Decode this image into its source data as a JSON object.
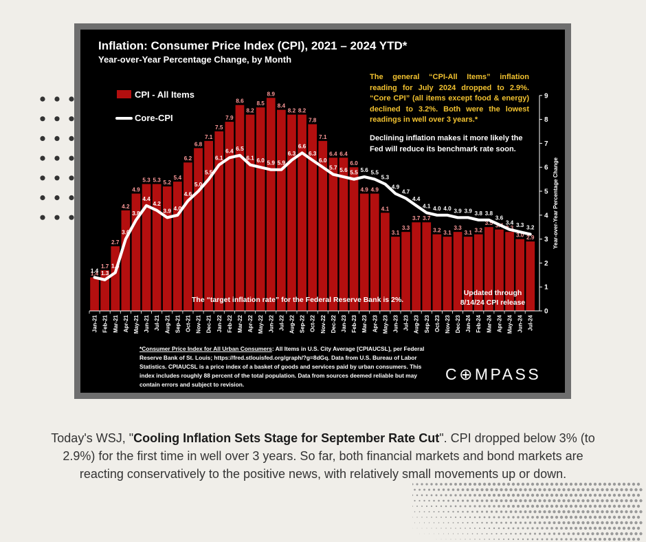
{
  "chart_data": {
    "type": "bar",
    "title": "Inflation: Consumer Price Index (CPI), 2021 – 2024 YTD*",
    "subtitle": "Year-over-Year Percentage Change, by Month",
    "ylabel": "Year-over-Year Percentage Change",
    "ylim": [
      0,
      9
    ],
    "yticks": [
      "0",
      "1",
      "2",
      "3",
      "4",
      "5",
      "6",
      "7",
      "8",
      "9"
    ],
    "grid": false,
    "legend_position": "top-left",
    "categories": [
      "Jan-21",
      "Feb-21",
      "Mar-21",
      "Apr-21",
      "May-21",
      "Jun-21",
      "Jul-21",
      "Aug-21",
      "Sep-21",
      "Oct-21",
      "Nov-21",
      "Dec-21",
      "Jan-22",
      "Feb-22",
      "Mar-22",
      "Apr-22",
      "May-22",
      "Jun-22",
      "Jul-22",
      "Aug-22",
      "Sep-22",
      "Oct-22",
      "Nov-22",
      "Dec-22",
      "Jan-23",
      "Feb-23",
      "Mar-23",
      "Apr-23",
      "May-23",
      "Jun-23",
      "Jul-23",
      "Aug-23",
      "Sep-23",
      "Oct-23",
      "Nov-23",
      "Dec-23",
      "Jan-24",
      "Feb-24",
      "Mar-24",
      "Apr-24",
      "May-24",
      "Jun-24",
      "Jul-24"
    ],
    "series": [
      {
        "name": "CPI - All Items",
        "kind": "bar",
        "values": [
          1.4,
          1.7,
          2.7,
          4.2,
          4.9,
          5.3,
          5.3,
          5.2,
          5.4,
          6.2,
          6.8,
          7.1,
          7.5,
          7.9,
          8.6,
          8.2,
          8.5,
          8.9,
          8.4,
          8.2,
          8.2,
          7.8,
          7.1,
          6.4,
          6.4,
          6.0,
          4.9,
          4.9,
          4.1,
          3.1,
          3.3,
          3.7,
          3.7,
          3.2,
          3.1,
          3.3,
          3.1,
          3.2,
          3.5,
          3.4,
          3.3,
          3.0,
          2.9
        ],
        "labels": [
          "1.4",
          "1.7",
          "2.7",
          "4.2",
          "4.9",
          "5.3",
          "5.3",
          "5.2",
          "5.4",
          "6.2",
          "6.8",
          "7.1",
          "7.5",
          "7.9",
          "8.6",
          "8.2",
          "8.5",
          "8.9",
          "8.4",
          "8.2",
          "8.2",
          "7.8",
          "7.1",
          "6.4",
          "6.4",
          "6.0",
          "4.9",
          "4.9",
          "4.1",
          "3.1",
          "3.3",
          "3.7",
          "3.7",
          "3.2",
          "3.1",
          "3.3",
          "3.1",
          "3.2",
          "3.5",
          "3.4",
          "3.3",
          "3.0",
          "2.9"
        ]
      },
      {
        "name": "Core-CPI",
        "kind": "line",
        "values": [
          1.4,
          1.3,
          1.6,
          3.0,
          3.8,
          4.4,
          4.2,
          3.9,
          4.0,
          4.6,
          5.0,
          5.5,
          6.1,
          6.4,
          6.5,
          6.1,
          6.0,
          5.9,
          5.9,
          6.3,
          6.6,
          6.3,
          6.0,
          5.7,
          5.6,
          5.5,
          5.6,
          5.5,
          5.3,
          4.9,
          4.7,
          4.4,
          4.1,
          4.0,
          4.0,
          3.9,
          3.9,
          3.8,
          3.8,
          3.6,
          3.4,
          3.3,
          3.2
        ],
        "labels": [
          "1.4",
          "1.3",
          "1.6",
          "3.0",
          "3.8",
          "4.4",
          "4.2",
          "3.9",
          "4.0",
          "4.6",
          "5.0",
          "5.5",
          "6.1",
          "6.4",
          "6.5",
          "6.1",
          "6.0",
          "5.9",
          "5.9",
          "6.3",
          "6.6",
          "6.3",
          "6.0",
          "5.7",
          "5.6",
          "5.5",
          "5.6",
          "5.5",
          "5.3",
          "4.9",
          "4.7",
          "4.4",
          "4.1",
          "4.0",
          "4.0",
          "3.9",
          "3.9",
          "3.8",
          "3.8",
          "3.6",
          "3.4",
          "3.3",
          "3.2"
        ]
      }
    ],
    "colors": {
      "bar": "#b30f0f",
      "bar_label": "#ff9a9a",
      "line": "#ffffff",
      "line_label": "#ffffff",
      "axis": "#ffffff"
    },
    "annotations": {
      "note_yellow": "The general “CPI-All Items” inflation reading for July 2024 dropped to 2.9%. “Core CPI” (all items except food & energy) declined to 3.2%. Both were the lowest readings in well over 3 years.*",
      "note_white": "Declining inflation makes it more likely the Fed will reduce its benchmark rate soon.",
      "target": "The “target inflation rate” for the Federal Reserve Bank is 2%.",
      "updated": "Updated through 8/14/24 CPI release",
      "source_lead": "*Consumer Price Index for All Urban Consumers",
      "source_body": ": All Items in U.S. City Average [CPIAUCSL], per Federal Reserve Bank of St. Louis; https://fred.stlouisfed.org/graph/?g=8dGq. Data from U.S. Bureau of Labor Statistics. CPIAUCSL is a price index of a basket of goods and services paid by urban consumers. This index includes roughly 88 percent of the total population. Data from sources deemed reliable but may contain errors and subject to revision."
    }
  },
  "brand": {
    "logo": "C⊕MPASS"
  },
  "caption": {
    "prefix": "Today's WSJ, \"",
    "headline": "Cooling Inflation Sets Stage for September Rate Cut",
    "suffix": "\". CPI dropped below 3% (to 2.9%) for the first time in well over 3 years. So far, both financial markets and bond markets are reacting conservatively to the positive news, with relatively small movements up or down."
  }
}
